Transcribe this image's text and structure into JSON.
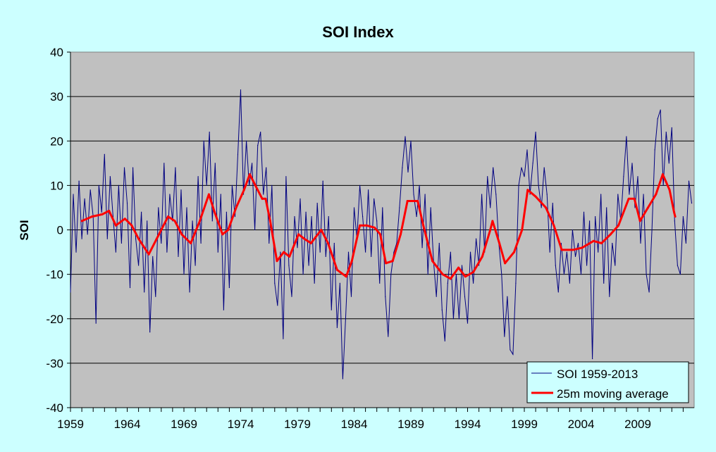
{
  "chart_data": {
    "type": "line",
    "title": "SOI Index",
    "xlabel": "",
    "ylabel": "SOI",
    "xlim": [
      1959,
      2014
    ],
    "ylim": [
      -40,
      40
    ],
    "x_ticks": [
      "1959",
      "1964",
      "1969",
      "1974",
      "1979",
      "1984",
      "1989",
      "1994",
      "1999",
      "2004",
      "2009"
    ],
    "y_ticks": [
      "40",
      "30",
      "20",
      "10",
      "0",
      "-10",
      "-20",
      "-30",
      "-40"
    ],
    "grid": "horizontal",
    "legend_position": "bottom-right",
    "plot_background": "#C0C0C0",
    "page_background": "#CCFFFF",
    "series": [
      {
        "name": "SOI 1959-2013",
        "color": "#000080",
        "x_start": 1959,
        "x_step": 0.25,
        "values": [
          -14,
          8,
          -5,
          11,
          -2,
          7,
          -1,
          9,
          3,
          -21,
          10,
          4,
          17,
          -2,
          12,
          3,
          -5,
          10,
          -3,
          14,
          6,
          -13,
          14,
          -2,
          -8,
          4,
          -14,
          2,
          -23,
          -6,
          -15,
          5,
          -3,
          15,
          -5,
          8,
          2,
          14,
          -6,
          9,
          -10,
          5,
          -14,
          2,
          -8,
          12,
          -3,
          20,
          10,
          22,
          2,
          15,
          -5,
          8,
          -18,
          4,
          -13,
          10,
          3,
          17,
          31.5,
          8,
          20,
          10,
          15,
          0,
          19,
          22,
          8,
          14,
          -3,
          10,
          -12,
          -17,
          -5,
          -24.5,
          12,
          -8,
          -15,
          3,
          -4,
          7,
          -10,
          4,
          -8,
          3,
          -12,
          6,
          -5,
          11,
          -6,
          3,
          -18,
          -3,
          -22,
          -12,
          -33.5,
          -20,
          -5,
          -15,
          5,
          -2,
          10,
          3,
          -5,
          9,
          -6,
          7,
          2,
          -12,
          5,
          -15,
          -24,
          -10,
          -5,
          -3,
          5,
          14,
          21,
          13,
          20,
          8,
          3,
          10,
          -4,
          8,
          -10,
          5,
          -7,
          -15,
          -3,
          -18,
          -25,
          -12,
          -5,
          -20,
          -10,
          -20,
          -8,
          -15,
          -21,
          -5,
          -12,
          -2,
          -8,
          8,
          -5,
          12,
          5,
          14,
          8,
          -3,
          -10,
          -24,
          -15,
          -27,
          -28,
          -12,
          10,
          14,
          12,
          18,
          8,
          15,
          22,
          10,
          5,
          14,
          8,
          -5,
          6,
          -8,
          -14,
          -3,
          -10,
          -5,
          -12,
          0,
          -6,
          -3,
          -10,
          4,
          -8,
          2,
          -29,
          3,
          -5,
          8,
          -12,
          5,
          -15,
          -3,
          -8,
          8,
          2,
          12,
          21,
          8,
          15,
          5,
          12,
          -3,
          8,
          -10,
          -14,
          0,
          18,
          25,
          27,
          10,
          22,
          15,
          23,
          2,
          -8,
          -10,
          3,
          -3,
          11,
          6
        ]
      },
      {
        "name": "25m moving average",
        "color": "#FF0000",
        "points": [
          [
            1960.0,
            2
          ],
          [
            1960.9,
            3
          ],
          [
            1961.8,
            3.5
          ],
          [
            1962.4,
            4.3
          ],
          [
            1963.0,
            1
          ],
          [
            1963.8,
            2.5
          ],
          [
            1964.4,
            1
          ],
          [
            1965.0,
            -2
          ],
          [
            1965.9,
            -5.5
          ],
          [
            1966.6,
            -2
          ],
          [
            1967.6,
            3
          ],
          [
            1968.2,
            2
          ],
          [
            1968.8,
            -1
          ],
          [
            1969.6,
            -3
          ],
          [
            1970.4,
            2
          ],
          [
            1971.2,
            8
          ],
          [
            1971.7,
            4
          ],
          [
            1972.4,
            -1
          ],
          [
            1972.9,
            0
          ],
          [
            1973.6,
            5
          ],
          [
            1974.3,
            9
          ],
          [
            1974.8,
            12.5
          ],
          [
            1975.3,
            10
          ],
          [
            1975.9,
            7
          ],
          [
            1976.2,
            7
          ],
          [
            1976.6,
            2
          ],
          [
            1977.2,
            -7
          ],
          [
            1977.8,
            -5
          ],
          [
            1978.3,
            -6
          ],
          [
            1979.1,
            -1
          ],
          [
            1979.6,
            -2
          ],
          [
            1980.2,
            -3
          ],
          [
            1981.1,
            0
          ],
          [
            1981.7,
            -3
          ],
          [
            1982.5,
            -9
          ],
          [
            1983.3,
            -10.5
          ],
          [
            1983.8,
            -7
          ],
          [
            1984.5,
            1
          ],
          [
            1985.1,
            1
          ],
          [
            1985.8,
            0.5
          ],
          [
            1986.3,
            -1
          ],
          [
            1986.8,
            -7.5
          ],
          [
            1987.4,
            -7
          ],
          [
            1988.1,
            -1
          ],
          [
            1988.7,
            6.5
          ],
          [
            1989.6,
            6.5
          ],
          [
            1990.1,
            1
          ],
          [
            1990.9,
            -7
          ],
          [
            1991.8,
            -10
          ],
          [
            1992.5,
            -11
          ],
          [
            1993.2,
            -8.5
          ],
          [
            1993.8,
            -10.5
          ],
          [
            1994.5,
            -9.5
          ],
          [
            1995.3,
            -6
          ],
          [
            1996.0,
            0
          ],
          [
            1996.2,
            2
          ],
          [
            1996.8,
            -3
          ],
          [
            1997.3,
            -7.5
          ],
          [
            1998.1,
            -5
          ],
          [
            1998.8,
            0
          ],
          [
            1999.3,
            9
          ],
          [
            2000.0,
            7.5
          ],
          [
            2000.9,
            5
          ],
          [
            2001.6,
            1
          ],
          [
            2002.3,
            -4.5
          ],
          [
            2003.3,
            -4.5
          ],
          [
            2004.1,
            -4
          ],
          [
            2005.1,
            -2.5
          ],
          [
            2005.8,
            -3
          ],
          [
            2006.6,
            -1
          ],
          [
            2007.3,
            1
          ],
          [
            2008.2,
            7
          ],
          [
            2008.7,
            7
          ],
          [
            2009.2,
            2
          ],
          [
            2009.9,
            5
          ],
          [
            2010.6,
            8
          ],
          [
            2011.2,
            12.5
          ],
          [
            2011.8,
            9
          ],
          [
            2012.2,
            4
          ],
          [
            2012.3,
            3
          ]
        ]
      }
    ]
  }
}
